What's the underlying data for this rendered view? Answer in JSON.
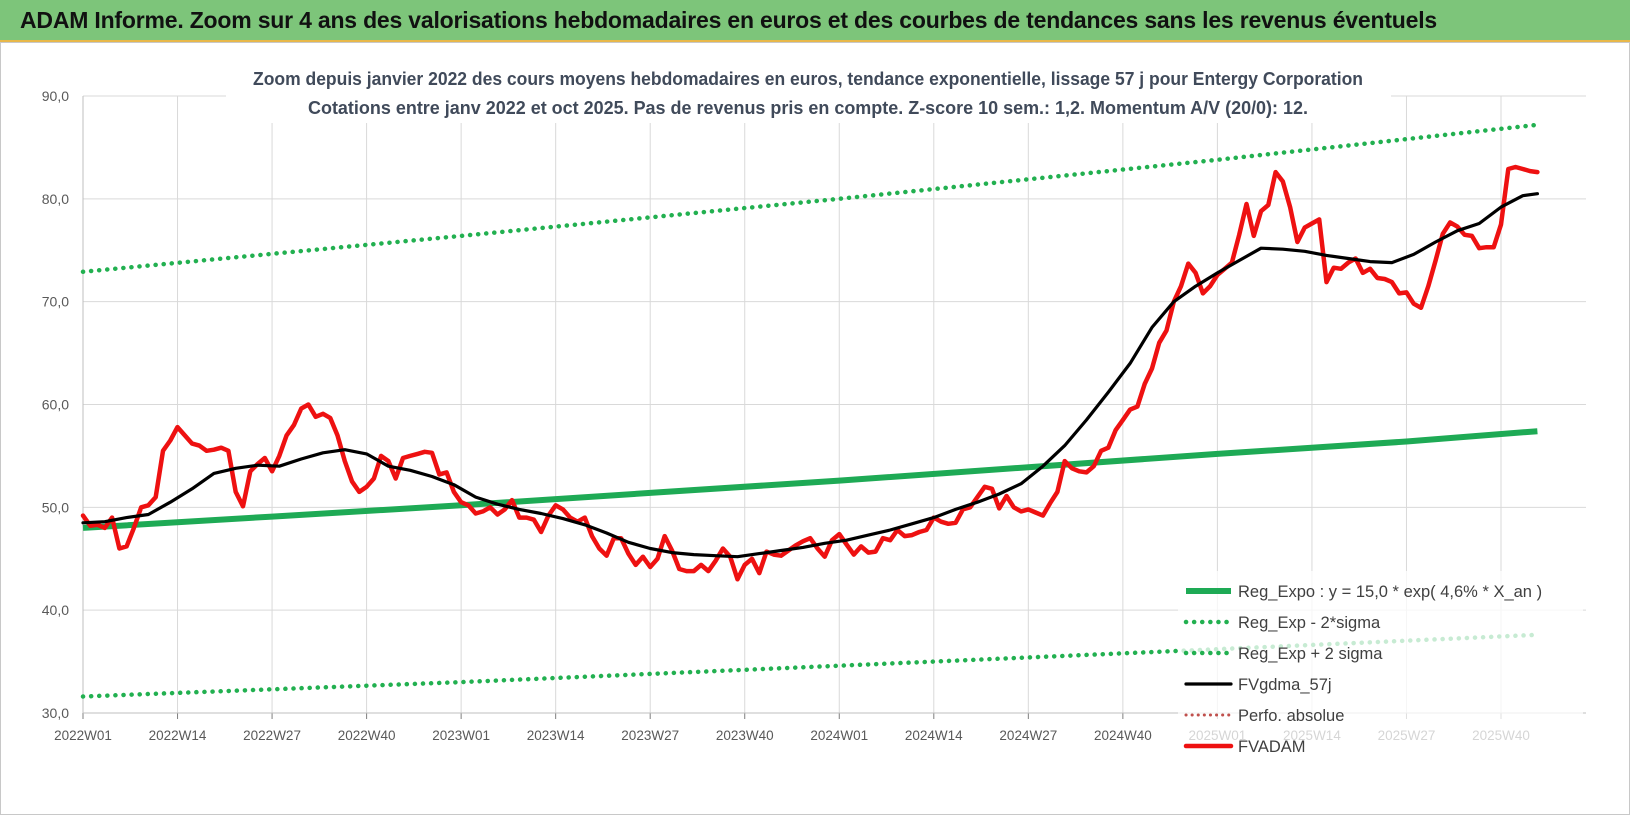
{
  "banner": {
    "title": "ADAM Informe. Zoom sur 4 ans des valorisations hebdomadaires en euros et des courbes de tendances sans les revenus éventuels"
  },
  "colors": {
    "banner_bg": "#7dc57a",
    "reg_green": "#1eaa55",
    "dotted_green": "#22b050",
    "fvgdma": "#000000",
    "fvadam": "#ee1111",
    "perfo": "#c0504d",
    "grid": "#d9d9d9",
    "axis_text": "#595959",
    "title_text": "#404a5a"
  },
  "chart_data": {
    "type": "line",
    "title": "Zoom depuis janvier 2022 des cours moyens hebdomadaires en euros, tendance exponentielle, lissage 57 j pour Entergy Corporation",
    "subtitle": "Cotations entre janv 2022 et oct 2025. Pas de revenus pris en compte. Z-score 10 sem.: 1,2. Momentum A/V (20/0): 12.",
    "xlabel": "",
    "ylabel": "",
    "ylim": [
      30,
      90
    ],
    "yticks": [
      "30,0",
      "40,0",
      "50,0",
      "60,0",
      "70,0",
      "80,0",
      "90,0"
    ],
    "ytick_values": [
      30,
      40,
      50,
      60,
      70,
      80,
      90
    ],
    "x_range_weeks": [
      0,
      195
    ],
    "xticks": [
      "2022W01",
      "2022W14",
      "2022W27",
      "2022W40",
      "2023W01",
      "2023W14",
      "2023W27",
      "2023W40",
      "2024W01",
      "2024W14",
      "2024W27",
      "2024W40",
      "2025W01",
      "2025W14",
      "2025W27",
      "2025W40"
    ],
    "xtick_positions": [
      0,
      13,
      26,
      39,
      52,
      65,
      78,
      91,
      104,
      117,
      130,
      143,
      156,
      169,
      182,
      195
    ],
    "grid": true,
    "legend_position": "bottom-right",
    "series": [
      {
        "name": "Reg_Expo : y = 15,0 * exp( 4,6% * X_an )",
        "style": "solid-thick",
        "x": [
          0,
          26,
          52,
          78,
          104,
          130,
          156,
          182,
          200
        ],
        "values": [
          48.0,
          49.1,
          50.2,
          51.4,
          52.6,
          53.9,
          55.2,
          56.4,
          57.4
        ]
      },
      {
        "name": "Reg_Exp - 2*sigma",
        "style": "dotted",
        "x": [
          0,
          52,
          104,
          156,
          200
        ],
        "values": [
          31.6,
          33.0,
          34.6,
          36.2,
          37.6
        ]
      },
      {
        "name": "Reg_Exp + 2 sigma",
        "style": "dotted",
        "x": [
          0,
          52,
          104,
          156,
          200
        ],
        "values": [
          72.9,
          76.4,
          80.0,
          83.8,
          87.2
        ]
      },
      {
        "name": "FVgdma_57j",
        "style": "solid",
        "x": [
          0,
          3,
          6,
          9,
          12,
          15,
          18,
          21,
          24,
          27,
          30,
          33,
          36,
          39,
          42,
          45,
          48,
          51,
          54,
          57,
          60,
          63,
          66,
          69,
          72,
          75,
          78,
          81,
          84,
          87,
          90,
          93,
          96,
          99,
          102,
          105,
          108,
          111,
          114,
          117,
          120,
          123,
          126,
          129,
          132,
          135,
          138,
          141,
          144,
          147,
          150,
          153,
          156,
          159,
          162,
          165,
          168,
          171,
          174,
          177,
          180,
          183,
          186,
          189,
          192,
          195,
          198,
          200
        ],
        "values": [
          48.5,
          48.6,
          49.0,
          49.3,
          50.5,
          51.8,
          53.3,
          53.8,
          54.1,
          54.0,
          54.7,
          55.3,
          55.6,
          55.2,
          54.0,
          53.6,
          53.0,
          52.2,
          51.0,
          50.3,
          49.8,
          49.4,
          48.9,
          48.3,
          47.5,
          46.6,
          46.0,
          45.6,
          45.4,
          45.3,
          45.2,
          45.5,
          45.8,
          46.1,
          46.5,
          46.8,
          47.3,
          47.8,
          48.4,
          49.0,
          49.8,
          50.5,
          51.3,
          52.3,
          54.0,
          56.0,
          58.5,
          61.2,
          64.0,
          67.5,
          70.0,
          71.5,
          72.8,
          74.0,
          75.2,
          75.1,
          74.9,
          74.5,
          74.2,
          73.9,
          73.8,
          74.6,
          75.8,
          76.9,
          77.6,
          79.2,
          80.3,
          80.5
        ]
      },
      {
        "name": "Perfo. absolue",
        "style": "dotted-thin",
        "x": [],
        "values": []
      },
      {
        "name": "FVADAM",
        "style": "solid-thick",
        "x": [
          0,
          1,
          2,
          3,
          4,
          5,
          6,
          7,
          8,
          9,
          10,
          11,
          12,
          13,
          14,
          15,
          16,
          17,
          18,
          19,
          20,
          21,
          22,
          23,
          24,
          25,
          26,
          27,
          28,
          29,
          30,
          31,
          32,
          33,
          34,
          35,
          36,
          37,
          38,
          39,
          40,
          41,
          42,
          43,
          44,
          45,
          46,
          47,
          48,
          49,
          50,
          51,
          52,
          53,
          54,
          55,
          56,
          57,
          58,
          59,
          60,
          61,
          62,
          63,
          64,
          65,
          66,
          67,
          68,
          69,
          70,
          71,
          72,
          73,
          74,
          75,
          76,
          77,
          78,
          79,
          80,
          81,
          82,
          83,
          84,
          85,
          86,
          87,
          88,
          89,
          90,
          91,
          92,
          93,
          94,
          95,
          96,
          97,
          98,
          99,
          100,
          101,
          102,
          103,
          104,
          105,
          106,
          107,
          108,
          109,
          110,
          111,
          112,
          113,
          114,
          115,
          116,
          117,
          118,
          119,
          120,
          121,
          122,
          123,
          124,
          125,
          126,
          127,
          128,
          129,
          130,
          131,
          132,
          133,
          134,
          135,
          136,
          137,
          138,
          139,
          140,
          141,
          142,
          143,
          144,
          145,
          146,
          147,
          148,
          149,
          150,
          151,
          152,
          153,
          154,
          155,
          156,
          157,
          158,
          159,
          160,
          161,
          162,
          163,
          164,
          165,
          166,
          167,
          168,
          169,
          170,
          171,
          172,
          173,
          174,
          175,
          176,
          177,
          178,
          179,
          180,
          181,
          182,
          183,
          184,
          185,
          186,
          187,
          188,
          189,
          190,
          191,
          192,
          193,
          194,
          195,
          196,
          197,
          198,
          199,
          200
        ],
        "values": [
          49.2,
          48.2,
          48.3,
          48.0,
          49.0,
          46.0,
          46.2,
          48.0,
          50.0,
          50.2,
          51.0,
          55.5,
          56.5,
          57.8,
          57.0,
          56.2,
          56.0,
          55.5,
          55.6,
          55.8,
          55.5,
          51.5,
          50.1,
          53.5,
          54.2,
          54.8,
          53.5,
          55.0,
          57.0,
          58.0,
          59.6,
          60.0,
          58.8,
          59.1,
          58.7,
          57.0,
          54.5,
          52.5,
          51.5,
          52.0,
          52.8,
          55.0,
          54.5,
          52.8,
          54.8,
          55.0,
          55.2,
          55.4,
          55.3,
          53.2,
          53.4,
          51.5,
          50.5,
          50.2,
          49.4,
          49.6,
          50.0,
          49.3,
          49.8,
          50.7,
          49.0,
          49.0,
          48.8,
          47.6,
          49.2,
          50.2,
          49.8,
          49.0,
          48.6,
          49.0,
          47.2,
          46.0,
          45.3,
          47.0,
          47.0,
          45.5,
          44.4,
          45.2,
          44.2,
          45.0,
          47.2,
          45.8,
          44.0,
          43.8,
          43.8,
          44.4,
          43.8,
          44.8,
          46.0,
          45.2,
          43.0,
          44.4,
          45.0,
          43.6,
          45.7,
          45.4,
          45.3,
          45.8,
          46.3,
          46.7,
          47.0,
          46.0,
          45.2,
          46.8,
          47.4,
          46.4,
          45.4,
          46.2,
          45.6,
          45.7,
          47.0,
          46.8,
          47.8,
          47.2,
          47.3,
          47.6,
          47.8,
          49.0,
          48.6,
          48.4,
          48.5,
          49.8,
          50.0,
          51.0,
          52.0,
          51.8,
          49.9,
          51.1,
          50.0,
          49.6,
          49.8,
          49.5,
          49.2,
          50.4,
          51.5,
          54.5,
          53.8,
          53.5,
          53.4,
          54.0,
          55.5,
          55.8,
          57.5,
          58.5,
          59.5,
          59.8,
          62.0,
          63.5,
          66.0,
          67.2,
          70.0,
          71.5,
          73.7,
          72.8,
          70.8,
          71.5,
          72.6,
          73.2,
          73.8,
          76.5,
          79.5,
          76.4,
          78.8,
          79.4,
          82.6,
          81.7,
          79.2,
          75.8,
          77.2,
          77.6,
          78.0,
          71.9,
          73.3,
          73.2,
          73.8,
          74.2,
          72.8,
          73.2,
          72.3,
          72.2,
          71.9,
          70.8,
          70.9,
          69.8,
          69.4,
          71.5,
          74.0,
          76.6,
          77.7,
          77.3,
          76.5,
          76.4,
          75.2,
          75.3,
          75.3,
          77.5,
          82.9,
          83.1,
          82.9,
          82.7,
          82.6
        ]
      }
    ]
  }
}
